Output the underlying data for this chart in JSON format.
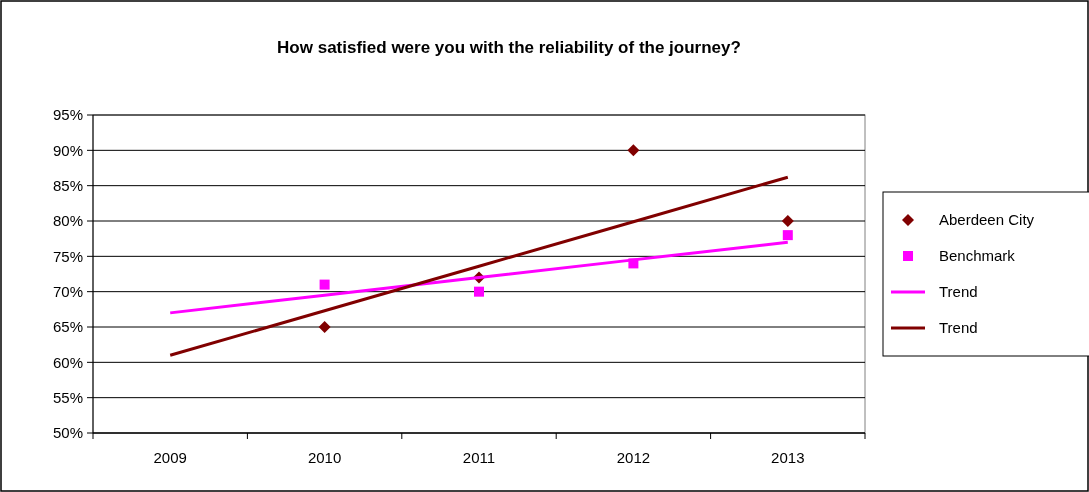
{
  "chart_data": {
    "type": "scatter",
    "title": "How satisfied were you with the reliability of the journey?",
    "categories": [
      "2009",
      "2010",
      "2011",
      "2012",
      "2013"
    ],
    "series": [
      {
        "name": "Aberdeen City",
        "color": "#800000",
        "marker": "diamond",
        "values": [
          null,
          65,
          72,
          90,
          80
        ]
      },
      {
        "name": "Benchmark",
        "color": "#ff00ff",
        "marker": "square",
        "values": [
          null,
          71,
          70,
          74,
          78
        ]
      },
      {
        "name": "Trend",
        "type": "line",
        "color": "#ff00ff",
        "marker": "none",
        "values": [
          67,
          69.5,
          72,
          74.5,
          77
        ]
      },
      {
        "name": "Trend",
        "type": "line",
        "color": "#800000",
        "marker": "none",
        "values": [
          61,
          67.3,
          73.6,
          79.9,
          86.2
        ]
      }
    ],
    "ylim": [
      50,
      95
    ],
    "yticks": [
      {
        "value": 50,
        "label": "50%"
      },
      {
        "value": 55,
        "label": "55%"
      },
      {
        "value": 60,
        "label": "60%"
      },
      {
        "value": 65,
        "label": "65%"
      },
      {
        "value": 70,
        "label": "70%"
      },
      {
        "value": 75,
        "label": "75%"
      },
      {
        "value": 80,
        "label": "80%"
      },
      {
        "value": 85,
        "label": "85%"
      },
      {
        "value": 90,
        "label": "90%"
      },
      {
        "value": 95,
        "label": "95%"
      }
    ],
    "grid": "y",
    "legend": "right"
  }
}
